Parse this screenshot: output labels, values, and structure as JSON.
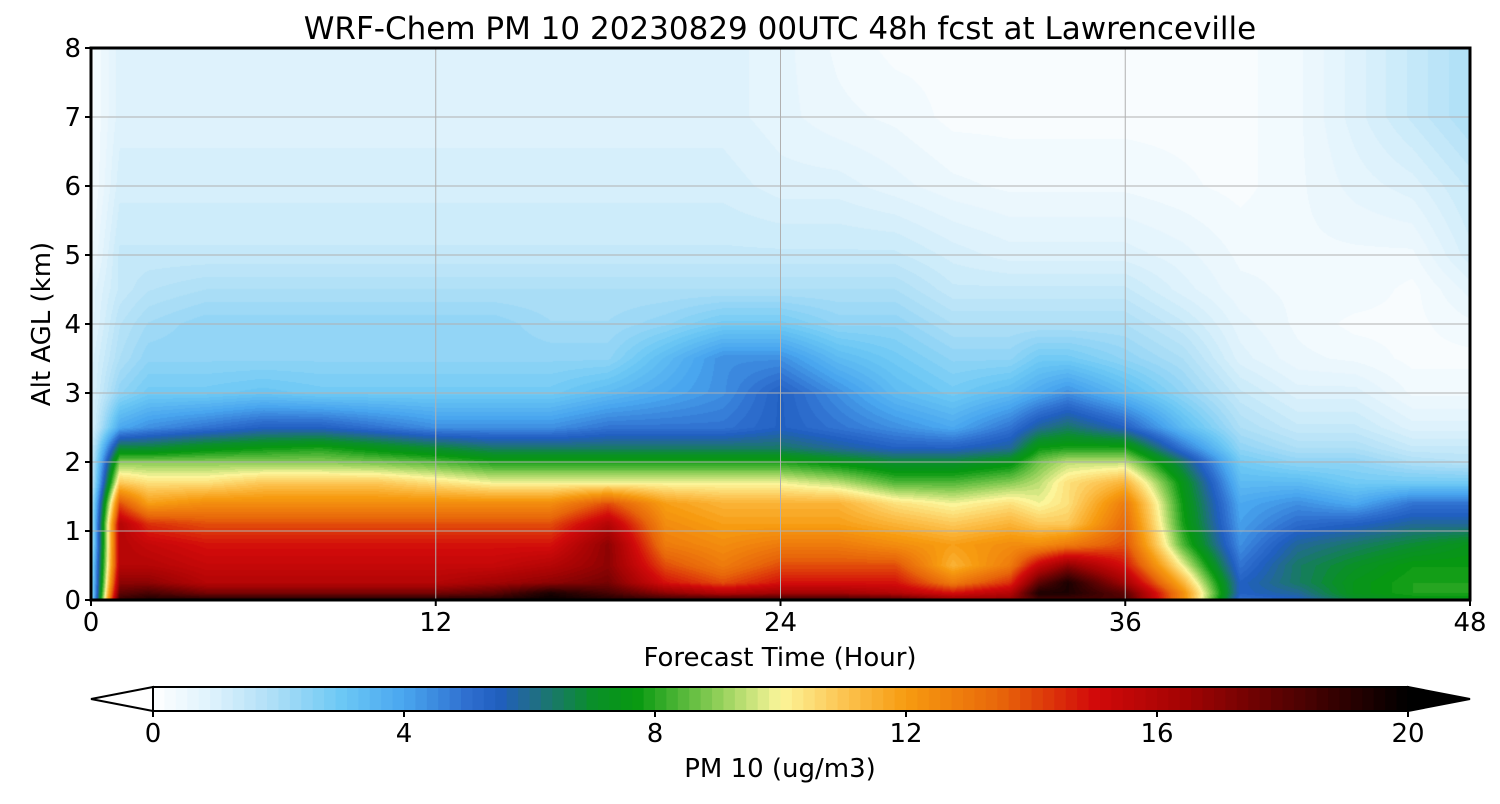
{
  "chart_data": {
    "type": "heatmap",
    "subtype": "filled-contour time-height cross-section",
    "title": "WRF-Chem PM 10  20230829 00UTC 48h fcst at Lawrenceville",
    "xlabel": "Forecast Time (Hour)",
    "ylabel": "Alt AGL (km)",
    "xlim": [
      0,
      48
    ],
    "ylim": [
      0,
      8
    ],
    "xticks": [
      "0",
      "12",
      "24",
      "36",
      "48"
    ],
    "yticks": [
      "0",
      "1",
      "2",
      "3",
      "4",
      "5",
      "6",
      "7",
      "8"
    ],
    "grid": true,
    "colorbar": {
      "label": "PM 10  (ug/m3)",
      "ticks": [
        "0",
        "4",
        "8",
        "12",
        "16",
        "20"
      ],
      "range": [
        0,
        20
      ],
      "extend": "both",
      "colors": [
        {
          "v": 0,
          "c": "#ffffff"
        },
        {
          "v": 1,
          "c": "#dbf1fc"
        },
        {
          "v": 2,
          "c": "#a9ddf6"
        },
        {
          "v": 3,
          "c": "#6cc8f5"
        },
        {
          "v": 4,
          "c": "#49a6ef"
        },
        {
          "v": 5,
          "c": "#2f6fcf"
        },
        {
          "v": 5.5,
          "c": "#205ec0"
        },
        {
          "v": 6,
          "c": "#216b8f"
        },
        {
          "v": 7,
          "c": "#0a8f2a"
        },
        {
          "v": 7.7,
          "c": "#079910"
        },
        {
          "v": 9,
          "c": "#8fcf58"
        },
        {
          "v": 10,
          "c": "#fcf59a"
        },
        {
          "v": 11,
          "c": "#fcc451"
        },
        {
          "v": 12,
          "c": "#f79b10"
        },
        {
          "v": 13.5,
          "c": "#e8660a"
        },
        {
          "v": 15,
          "c": "#d20a0a"
        },
        {
          "v": 16.5,
          "c": "#a00303"
        },
        {
          "v": 18,
          "c": "#5a0202"
        },
        {
          "v": 20,
          "c": "#000000"
        }
      ]
    },
    "grid_x_hours": [
      0,
      1,
      2,
      4,
      6,
      8,
      10,
      12,
      14,
      16,
      18,
      20,
      22,
      24,
      26,
      28,
      30,
      32,
      33,
      34,
      36,
      38,
      40,
      42,
      44,
      46,
      48
    ],
    "grid_y_km": [
      0,
      0.1,
      0.25,
      0.5,
      0.8,
      1.1,
      1.4,
      1.7,
      2.0,
      2.2,
      2.5,
      3.0,
      3.5,
      4.0,
      4.5,
      5.0,
      6.0,
      7.0,
      8.0
    ],
    "values_by_time": [
      [
        2,
        2,
        2,
        2,
        1.5,
        1.5,
        1.5,
        1.2,
        1.2,
        1.2,
        1,
        1,
        1,
        0.8,
        0.8,
        0.5,
        0.3,
        0.3,
        0.3
      ],
      [
        19,
        18,
        17,
        16,
        16,
        16,
        14,
        11,
        9,
        7,
        4,
        2.5,
        2,
        1.8,
        1.5,
        1.5,
        1.2,
        1,
        1
      ],
      [
        19.5,
        18.5,
        17,
        16,
        15.5,
        14.5,
        12,
        10.5,
        9,
        7,
        4.5,
        3,
        2.5,
        2.2,
        1.8,
        1.5,
        1.2,
        1,
        1
      ],
      [
        19.5,
        17.5,
        16,
        15.5,
        15,
        14,
        12.5,
        10.5,
        9,
        7.5,
        5,
        3,
        2.5,
        2.5,
        2,
        1.5,
        1.2,
        1,
        1
      ],
      [
        19.5,
        17.5,
        16,
        15.5,
        15,
        14,
        12.5,
        11,
        9,
        7.8,
        5.5,
        3.2,
        2.5,
        2.5,
        2,
        1.5,
        1.2,
        1,
        1
      ],
      [
        19.5,
        17.5,
        16,
        15.5,
        15,
        14,
        12.5,
        11,
        9,
        8,
        5.5,
        3,
        2.5,
        2.5,
        2,
        1.5,
        1.2,
        1,
        1
      ],
      [
        19.5,
        17.5,
        16,
        15.5,
        15,
        14,
        12.5,
        11,
        8.8,
        7.5,
        5,
        3,
        2.5,
        2.5,
        2,
        1.5,
        1.2,
        1,
        1
      ],
      [
        19.5,
        17.5,
        16,
        15.5,
        15,
        14,
        12.5,
        10.5,
        8.5,
        7,
        4.5,
        3,
        2.5,
        2.5,
        2,
        1.5,
        1.2,
        1,
        1
      ],
      [
        19.5,
        18,
        16.5,
        15.5,
        15,
        14,
        12.5,
        10,
        8,
        6.5,
        4.5,
        3,
        2.5,
        2.5,
        2,
        1.5,
        1.2,
        1,
        1
      ],
      [
        20,
        19.5,
        17,
        16,
        15,
        14,
        12.5,
        10,
        8,
        6.5,
        4.5,
        3,
        2.5,
        2.2,
        2,
        1.5,
        1.2,
        1,
        1
      ],
      [
        19.5,
        18.5,
        17.5,
        17,
        17,
        16,
        14,
        10,
        8,
        6.5,
        5,
        3.5,
        2.5,
        2.2,
        2,
        1.5,
        1.2,
        1,
        1
      ],
      [
        19,
        17,
        15,
        14,
        13,
        12.5,
        12,
        10,
        8,
        6.5,
        5,
        4,
        3.5,
        2.5,
        2,
        1.5,
        1.2,
        1,
        1
      ],
      [
        19,
        16,
        14,
        13,
        12.5,
        12,
        11.5,
        10,
        8,
        6.5,
        5,
        4.5,
        4.5,
        3,
        2,
        1.5,
        1.2,
        1,
        1
      ],
      [
        19,
        16.5,
        15,
        14,
        13,
        12,
        11.5,
        10,
        8,
        6.5,
        5.5,
        5.5,
        4.5,
        3,
        2,
        1.5,
        1,
        0.8,
        0.8
      ],
      [
        19,
        16.5,
        15,
        14,
        13,
        12,
        11.5,
        9.5,
        7.5,
        6,
        5,
        4.5,
        3.5,
        2.5,
        2,
        1.5,
        1,
        0.6,
        0.5
      ],
      [
        18.5,
        16,
        15,
        14,
        12.5,
        11.5,
        10.5,
        8.5,
        7,
        5.5,
        4.5,
        3.5,
        3,
        2.5,
        2,
        1.5,
        0.8,
        0.5,
        0.3
      ],
      [
        17,
        15,
        13,
        11.5,
        12,
        11,
        10,
        8.5,
        7,
        5.5,
        4,
        3,
        2.5,
        2,
        1.5,
        1.2,
        0.6,
        0.3,
        0.3
      ],
      [
        17,
        16,
        14.5,
        13,
        12.5,
        11.5,
        10.5,
        9,
        7.5,
        6,
        5,
        3.5,
        2.5,
        2,
        1.5,
        1,
        0.5,
        0.3,
        0.3
      ],
      [
        18.5,
        19.5,
        18,
        15.5,
        12.5,
        11,
        10,
        9.5,
        8.8,
        7.8,
        6,
        4,
        3,
        2,
        1.5,
        1,
        0.5,
        0.3,
        0.3
      ],
      [
        18.5,
        19.5,
        19.5,
        17,
        13,
        11,
        10.5,
        10.5,
        9.5,
        8,
        6.5,
        4.5,
        3,
        2,
        1.5,
        1,
        0.5,
        0.3,
        0.3
      ],
      [
        18.5,
        18,
        16.5,
        15,
        14,
        13.5,
        13,
        11.5,
        9.5,
        8,
        5.5,
        3.5,
        2.5,
        2,
        1.5,
        1,
        0.5,
        0.3,
        0.3
      ],
      [
        12.5,
        12.5,
        11.5,
        10,
        8.5,
        8,
        7.8,
        7.5,
        6.5,
        5,
        3.5,
        2.5,
        2,
        1.5,
        1,
        0.8,
        0.4,
        0.3,
        0.3
      ],
      [
        5,
        5.5,
        5.5,
        5,
        4.5,
        4.2,
        4,
        3.5,
        3,
        2.5,
        2,
        1.5,
        1,
        0.8,
        0.6,
        0.5,
        0.3,
        0.3,
        0.3
      ],
      [
        5.5,
        6,
        6.5,
        6.5,
        6,
        5.2,
        4.5,
        3.5,
        2.5,
        2,
        1.5,
        1,
        0.6,
        0.5,
        0.5,
        0.5,
        0.5,
        0.5,
        0.5
      ],
      [
        7,
        7.5,
        7.5,
        7.2,
        6.5,
        5.5,
        4,
        3,
        2.5,
        2,
        1.5,
        1,
        0.5,
        0.3,
        0.5,
        0.5,
        0.8,
        1,
        1
      ],
      [
        7.5,
        8,
        8,
        7.8,
        7,
        6,
        5,
        3,
        2,
        1.5,
        1,
        0.5,
        0.3,
        0.3,
        0.3,
        0.5,
        1,
        1.5,
        1.5
      ],
      [
        7.5,
        8,
        8,
        7.8,
        7.5,
        6,
        5,
        3,
        1.8,
        1.5,
        1,
        0.5,
        0.3,
        0.5,
        0.8,
        1.2,
        1.5,
        2,
        2
      ]
    ]
  }
}
